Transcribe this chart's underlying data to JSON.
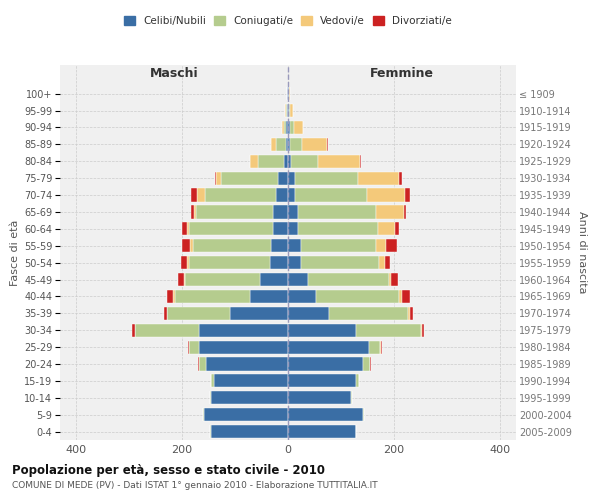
{
  "age_groups": [
    "0-4",
    "5-9",
    "10-14",
    "15-19",
    "20-24",
    "25-29",
    "30-34",
    "35-39",
    "40-44",
    "45-49",
    "50-54",
    "55-59",
    "60-64",
    "65-69",
    "70-74",
    "75-79",
    "80-84",
    "85-89",
    "90-94",
    "95-99",
    "100+"
  ],
  "birth_years": [
    "2005-2009",
    "2000-2004",
    "1995-1999",
    "1990-1994",
    "1985-1989",
    "1980-1984",
    "1975-1979",
    "1970-1974",
    "1965-1969",
    "1960-1964",
    "1955-1959",
    "1950-1954",
    "1945-1949",
    "1940-1944",
    "1935-1939",
    "1930-1934",
    "1925-1929",
    "1920-1924",
    "1915-1919",
    "1910-1914",
    "≤ 1909"
  ],
  "males": {
    "celibi": [
      145,
      158,
      145,
      140,
      155,
      168,
      168,
      110,
      72,
      52,
      34,
      32,
      28,
      28,
      22,
      18,
      8,
      4,
      3,
      2,
      1
    ],
    "coniugati": [
      2,
      2,
      3,
      5,
      12,
      18,
      120,
      118,
      142,
      142,
      152,
      148,
      158,
      145,
      135,
      108,
      48,
      18,
      5,
      2,
      1
    ],
    "vedovi": [
      0,
      0,
      0,
      0,
      1,
      1,
      1,
      1,
      2,
      3,
      4,
      4,
      5,
      5,
      15,
      10,
      15,
      10,
      3,
      1,
      0
    ],
    "divorziati": [
      0,
      0,
      0,
      0,
      1,
      2,
      5,
      5,
      12,
      10,
      12,
      15,
      8,
      5,
      10,
      2,
      0,
      0,
      0,
      0,
      0
    ]
  },
  "females": {
    "nubili": [
      128,
      142,
      118,
      128,
      142,
      152,
      128,
      78,
      52,
      38,
      24,
      24,
      18,
      18,
      14,
      14,
      5,
      4,
      3,
      2,
      1
    ],
    "coniugate": [
      1,
      2,
      3,
      5,
      12,
      22,
      122,
      148,
      158,
      152,
      148,
      142,
      152,
      148,
      135,
      118,
      52,
      22,
      8,
      2,
      1
    ],
    "vedove": [
      0,
      0,
      0,
      0,
      1,
      1,
      2,
      4,
      5,
      5,
      10,
      18,
      32,
      52,
      72,
      78,
      78,
      48,
      18,
      5,
      1
    ],
    "divorziate": [
      0,
      0,
      0,
      0,
      1,
      2,
      5,
      5,
      15,
      12,
      10,
      22,
      8,
      5,
      10,
      5,
      3,
      2,
      0,
      0,
      0
    ]
  },
  "colors": {
    "celibi": "#3a6ea5",
    "coniugati": "#b5cc8e",
    "vedovi": "#f4c97a",
    "divorziati": "#cc2222"
  },
  "xlim": 430,
  "title": "Popolazione per età, sesso e stato civile - 2010",
  "subtitle": "COMUNE DI MEDE (PV) - Dati ISTAT 1° gennaio 2010 - Elaborazione TUTTITALIA.IT",
  "ylabel_left": "Fasce di età",
  "ylabel_right": "Anni di nascita",
  "xlabel_maschi": "Maschi",
  "xlabel_femmine": "Femmine"
}
